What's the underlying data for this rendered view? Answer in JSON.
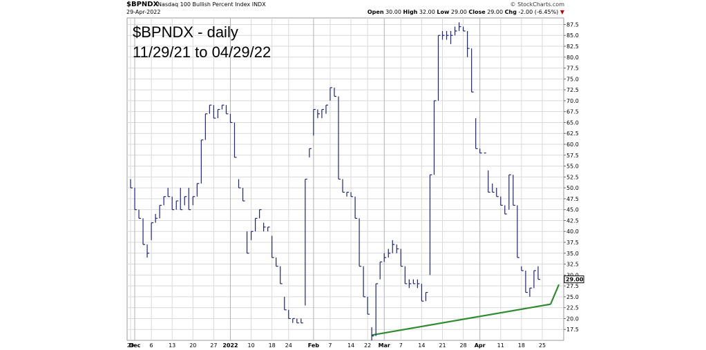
{
  "header": {
    "symbol": "$BPNDX",
    "description": "Nasdaq 100 Bullish Percent Index",
    "exchange": "INDX",
    "date": "29-Apr-2022",
    "credit": "© StockCharts.com",
    "open_label": "Open",
    "open": "30.00",
    "high_label": "High",
    "high": "32.00",
    "low_label": "Low",
    "low": "29.00",
    "close_label": "Close",
    "close": "29.00",
    "chg_label": "Chg",
    "chg": "-2.00 (-6.45%)",
    "chg_arrow": "▼"
  },
  "annotation": {
    "line1": "$BPNDX - daily",
    "line2": "11/29/21 to 04/29/22"
  },
  "colors": {
    "price": "#1a237e",
    "trend": "#2e8b2e",
    "grid": "#d9d9d9",
    "badge_bg": "#ffffff"
  },
  "chart_data": {
    "type": "line",
    "style": "hlc-bar",
    "ylim": [
      15,
      89
    ],
    "y_ticks": [
      "17.5",
      "20.0",
      "22.5",
      "25.0",
      "27.5",
      "30.0",
      "32.5",
      "35.0",
      "37.5",
      "40.0",
      "42.5",
      "45.0",
      "47.5",
      "50.0",
      "52.5",
      "55.0",
      "57.5",
      "60.0",
      "62.5",
      "65.0",
      "67.5",
      "70.0",
      "72.5",
      "75.0",
      "77.5",
      "80.0",
      "82.5",
      "85.0",
      "87.5"
    ],
    "x_ticks": [
      {
        "label": "29",
        "i": 0
      },
      {
        "label": "Dec",
        "i": 1
      },
      {
        "label": "6",
        "i": 5
      },
      {
        "label": "13",
        "i": 10
      },
      {
        "label": "20",
        "i": 15
      },
      {
        "label": "27",
        "i": 20
      },
      {
        "label": "2022",
        "i": 24
      },
      {
        "label": "10",
        "i": 29
      },
      {
        "label": "18",
        "i": 34
      },
      {
        "label": "24",
        "i": 38
      },
      {
        "label": "Feb",
        "i": 44
      },
      {
        "label": "7",
        "i": 48
      },
      {
        "label": "14",
        "i": 53
      },
      {
        "label": "22",
        "i": 57
      },
      {
        "label": "Mar",
        "i": 61
      },
      {
        "label": "7",
        "i": 65
      },
      {
        "label": "14",
        "i": 70
      },
      {
        "label": "21",
        "i": 75
      },
      {
        "label": "28",
        "i": 80
      },
      {
        "label": "Apr",
        "i": 84
      },
      {
        "label": "11",
        "i": 89
      },
      {
        "label": "18",
        "i": 94
      },
      {
        "label": "25",
        "i": 99
      }
    ],
    "major_x_ticks": [
      1,
      24,
      44,
      61,
      84
    ],
    "last_value_label": "29.00",
    "series": [
      {
        "bars": [
          {
            "h": 52,
            "l": 50,
            "c": 50
          },
          {
            "h": 50,
            "l": 45,
            "c": 45
          },
          {
            "h": 45,
            "l": 43,
            "c": 43
          },
          {
            "h": 43,
            "l": 37,
            "c": 37
          },
          {
            "h": 37,
            "l": 34,
            "c": 35
          },
          {
            "h": 42,
            "l": 38,
            "c": 42
          },
          {
            "h": 44,
            "l": 42,
            "c": 43
          },
          {
            "h": 46,
            "l": 43,
            "c": 46
          },
          {
            "h": 48,
            "l": 46,
            "c": 48
          },
          {
            "h": 50,
            "l": 48,
            "c": 48
          },
          {
            "h": 48,
            "l": 45,
            "c": 45
          },
          {
            "h": 47,
            "l": 45,
            "c": 47
          },
          {
            "h": 50,
            "l": 45,
            "c": 45
          },
          {
            "h": 48,
            "l": 46,
            "c": 48
          },
          {
            "h": 50,
            "l": 45,
            "c": 45
          },
          {
            "h": 48,
            "l": 46,
            "c": 48
          },
          {
            "h": 51,
            "l": 48,
            "c": 51
          },
          {
            "h": 61,
            "l": 51,
            "c": 61
          },
          {
            "h": 67,
            "l": 61,
            "c": 67
          },
          {
            "h": 69,
            "l": 67,
            "c": 69
          },
          {
            "h": 69,
            "l": 66,
            "c": 66
          },
          {
            "h": 68,
            "l": 66,
            "c": 68
          },
          {
            "h": 69,
            "l": 68,
            "c": 69
          },
          {
            "h": 69,
            "l": 67,
            "c": 67
          },
          {
            "h": 67,
            "l": 65,
            "c": 65
          },
          {
            "h": 65,
            "l": 57,
            "c": 57
          },
          {
            "h": 52,
            "l": 50,
            "c": 50
          },
          {
            "h": 50,
            "l": 47,
            "c": 47
          },
          {
            "h": 40,
            "l": 35,
            "c": 35
          },
          {
            "h": 40,
            "l": 38,
            "c": 40
          },
          {
            "h": 43,
            "l": 40,
            "c": 43
          },
          {
            "h": 45,
            "l": 43,
            "c": 45
          },
          {
            "h": 42,
            "l": 40,
            "c": 41
          },
          {
            "h": 41,
            "l": 40,
            "c": 41
          },
          {
            "h": 39,
            "l": 34,
            "c": 34
          },
          {
            "h": 34,
            "l": 32,
            "c": 32
          },
          {
            "h": 32,
            "l": 28,
            "c": 28
          },
          {
            "h": 25,
            "l": 22,
            "c": 22
          },
          {
            "h": 22,
            "l": 20,
            "c": 20
          },
          {
            "h": 20,
            "l": 19,
            "c": 20
          },
          {
            "h": 20,
            "l": 19,
            "c": 19
          },
          {
            "h": 20,
            "l": 19,
            "c": 19
          },
          {
            "h": 52,
            "l": 23,
            "c": 52
          },
          {
            "h": 59,
            "l": 57,
            "c": 59
          },
          {
            "h": 68,
            "l": 62,
            "c": 68
          },
          {
            "h": 68,
            "l": 66,
            "c": 67
          },
          {
            "h": 68,
            "l": 66,
            "c": 68
          },
          {
            "h": 69,
            "l": 67,
            "c": 69
          },
          {
            "h": 73,
            "l": 70,
            "c": 73
          },
          {
            "h": 73,
            "l": 71,
            "c": 71
          },
          {
            "h": 71,
            "l": 52,
            "c": 52
          },
          {
            "h": 52,
            "l": 49,
            "c": 49
          },
          {
            "h": 49,
            "l": 48,
            "c": 49
          },
          {
            "h": 49,
            "l": 48,
            "c": 48
          },
          {
            "h": 48,
            "l": 43,
            "c": 43
          },
          {
            "h": 43,
            "l": 32,
            "c": 32
          },
          {
            "h": 32,
            "l": 25,
            "c": 25
          },
          {
            "h": 25,
            "l": 21,
            "c": 21
          },
          {
            "h": 18,
            "l": 15,
            "c": 16
          },
          {
            "h": 28,
            "l": 16,
            "c": 28
          },
          {
            "h": 33,
            "l": 29,
            "c": 33
          },
          {
            "h": 35,
            "l": 33,
            "c": 34
          },
          {
            "h": 36,
            "l": 34,
            "c": 35
          },
          {
            "h": 38,
            "l": 35,
            "c": 37
          },
          {
            "h": 37,
            "l": 35,
            "c": 36
          },
          {
            "h": 36,
            "l": 32,
            "c": 32
          },
          {
            "h": 32,
            "l": 28,
            "c": 28
          },
          {
            "h": 29,
            "l": 27,
            "c": 28
          },
          {
            "h": 29,
            "l": 28,
            "c": 28
          },
          {
            "h": 29,
            "l": 27,
            "c": 28
          },
          {
            "h": 28,
            "l": 24,
            "c": 24
          },
          {
            "h": 26,
            "l": 24,
            "c": 26
          },
          {
            "h": 53,
            "l": 30,
            "c": 53
          },
          {
            "h": 70,
            "l": 53,
            "c": 70
          },
          {
            "h": 85,
            "l": 70,
            "c": 85
          },
          {
            "h": 86,
            "l": 84,
            "c": 85
          },
          {
            "h": 86,
            "l": 84,
            "c": 85
          },
          {
            "h": 86,
            "l": 83,
            "c": 85
          },
          {
            "h": 87,
            "l": 85,
            "c": 86
          },
          {
            "h": 88,
            "l": 86,
            "c": 87
          },
          {
            "h": 87,
            "l": 86,
            "c": 86
          },
          {
            "h": 86,
            "l": 80,
            "c": 82
          },
          {
            "h": 82,
            "l": 72,
            "c": 72
          },
          {
            "h": 66,
            "l": 59,
            "c": 59
          },
          {
            "h": 59,
            "l": 58,
            "c": 58
          },
          {
            "h": 58,
            "l": 58,
            "c": 58
          },
          {
            "h": 54,
            "l": 49,
            "c": 49
          },
          {
            "h": 51,
            "l": 49,
            "c": 49
          },
          {
            "h": 50,
            "l": 48,
            "c": 48
          },
          {
            "h": 48,
            "l": 46,
            "c": 46
          },
          {
            "h": 46,
            "l": 44,
            "c": 44
          },
          {
            "h": 53,
            "l": 45,
            "c": 53
          },
          {
            "h": 53,
            "l": 46,
            "c": 46
          },
          {
            "h": 46,
            "l": 34,
            "c": 34
          },
          {
            "h": 32,
            "l": 31,
            "c": 31
          },
          {
            "h": 31,
            "l": 26,
            "c": 26
          },
          {
            "h": 27,
            "l": 25,
            "c": 27
          },
          {
            "h": 31,
            "l": 27,
            "c": 31
          },
          {
            "h": 32,
            "l": 29,
            "c": 29
          }
        ]
      }
    ],
    "trendline": {
      "from": {
        "i": 58,
        "y": 16.2
      },
      "to": {
        "i": 101,
        "y": 23.3
      }
    },
    "trendline_extension": {
      "from": {
        "i": 101,
        "y": 23.3
      },
      "to": {
        "i": 103,
        "y": 27.8
      }
    }
  }
}
